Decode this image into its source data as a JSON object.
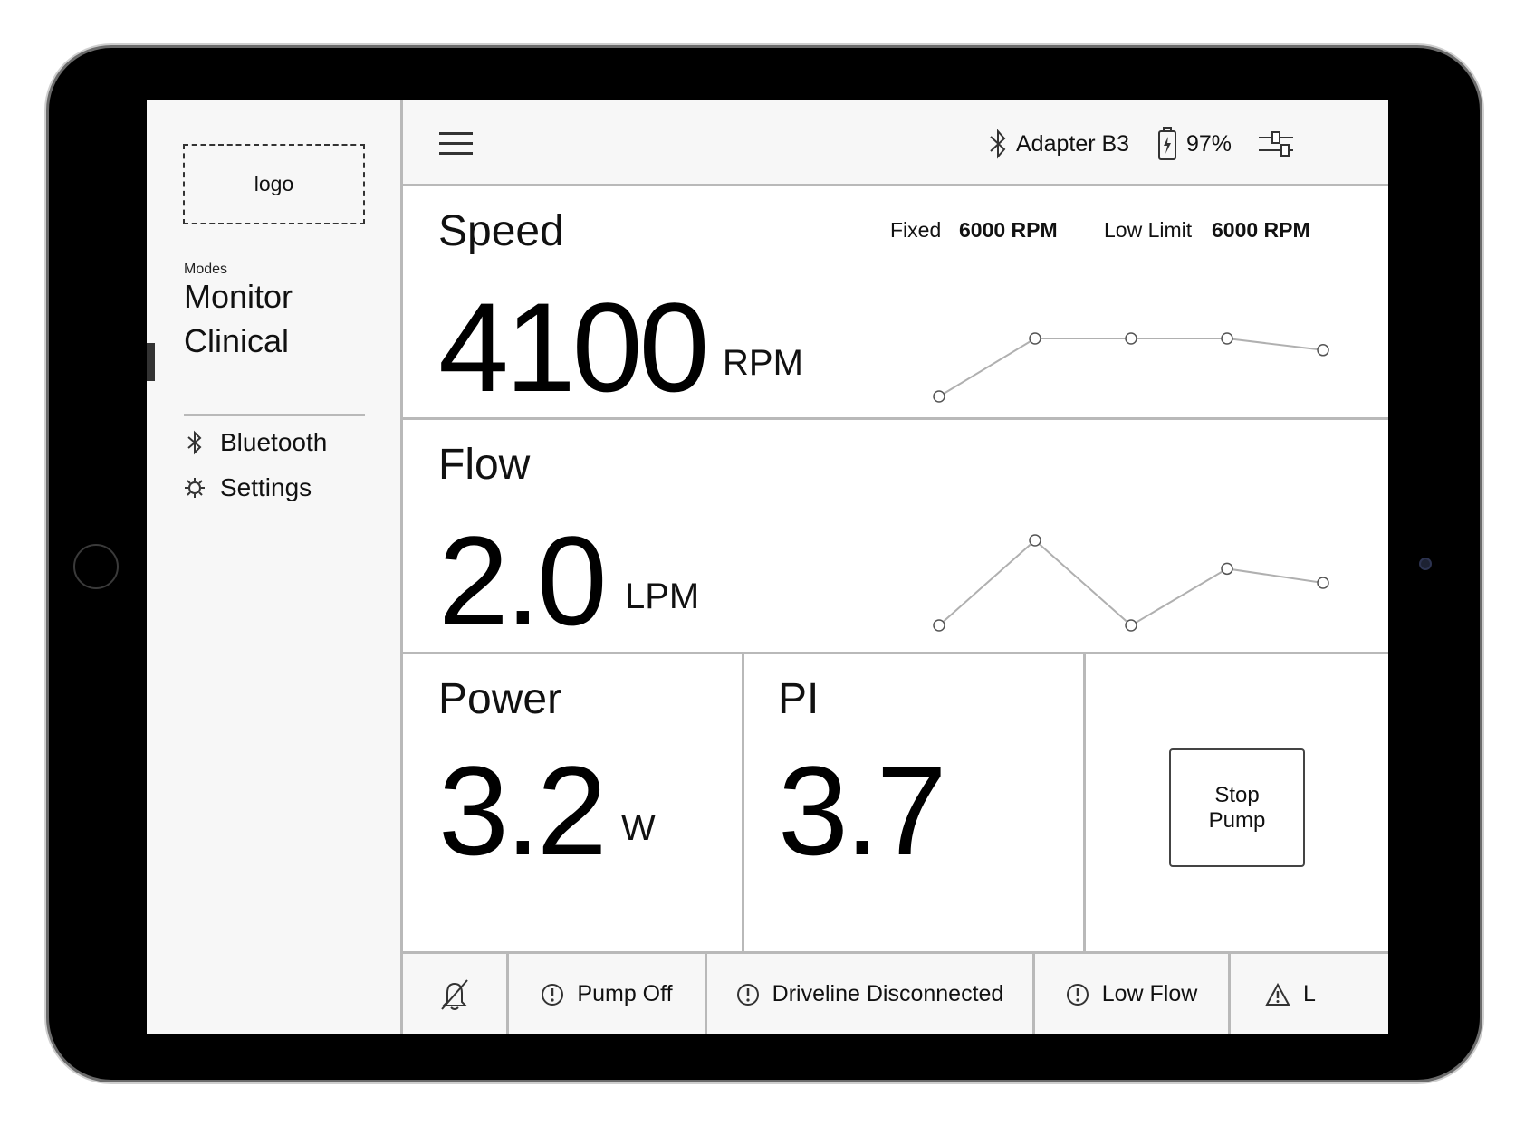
{
  "sidebar": {
    "logo": "logo",
    "modes_label": "Modes",
    "modes": [
      "Monitor",
      "Clinical"
    ],
    "links": [
      {
        "label": "Bluetooth",
        "icon": "bluetooth-icon"
      },
      {
        "label": "Settings",
        "icon": "gear-icon"
      }
    ]
  },
  "topbar": {
    "adapter": "Adapter B3",
    "battery": "97%"
  },
  "speed": {
    "title": "Speed",
    "fixed_label": "Fixed",
    "fixed_value": "6000 RPM",
    "low_limit_label": "Low Limit",
    "low_limit_value": "6000 RPM",
    "value": "4100",
    "unit": "RPM",
    "trend": [
      4000,
      4100,
      4100,
      4100,
      4080
    ]
  },
  "flow": {
    "title": "Flow",
    "value": "2.0",
    "unit": "LPM",
    "trend": [
      1.9,
      2.2,
      1.9,
      2.1,
      2.05
    ]
  },
  "power": {
    "title": "Power",
    "value": "3.2",
    "unit": "W"
  },
  "pi": {
    "title": "PI",
    "value": "3.7"
  },
  "stop_button": {
    "line1": "Stop",
    "line2": "Pump"
  },
  "alerts": [
    {
      "label": "Pump Off",
      "icon": "alert-circle-icon"
    },
    {
      "label": "Driveline Disconnected",
      "icon": "alert-circle-icon"
    },
    {
      "label": "Low Flow",
      "icon": "alert-circle-icon"
    },
    {
      "label": "L",
      "icon": "warning-triangle-icon"
    }
  ],
  "colors": {
    "divider": "#b9b9b9",
    "panel_bg": "#f7f7f7",
    "trend_line": "#b0b0b0"
  }
}
